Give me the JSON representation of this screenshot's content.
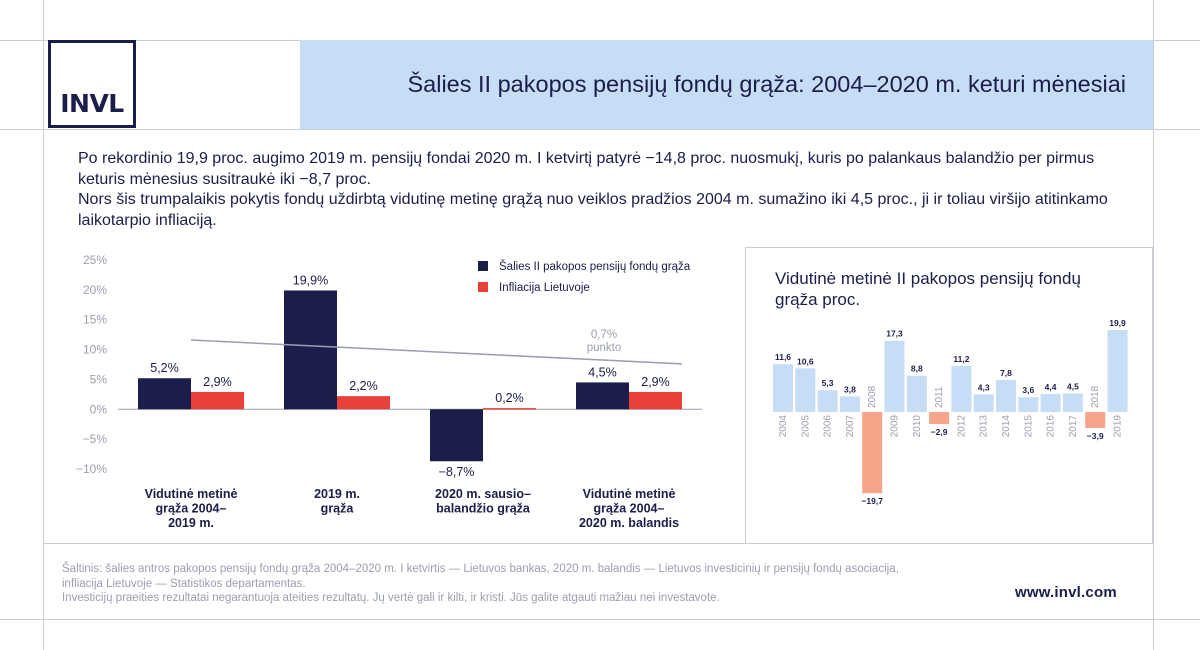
{
  "brand": {
    "logo_text": "INVL"
  },
  "header": {
    "title": "Šalies II pakopos pensijų fondų grąža: 2004–2020 m. keturi mėnesiai"
  },
  "intro": {
    "paragraph1": "Po rekordinio 19,9 proc. augimo 2019 m. pensijų fondai 2020 m. I ketvirtį patyrė −14,8 proc. nuosmukį, kuris po palankaus balandžio per pirmus keturis mėnesius susitraukė iki −8,7 proc.",
    "paragraph2": "Nors šis trumpalaikis pokytis fondų uždirbtą vidutinę metinę grąžą nuo veiklos pradžios 2004 m. sumažino iki 4,5 proc., ji ir toliau viršijo atitinkamo laikotarpio infliaciją."
  },
  "chart_data": [
    {
      "type": "bar",
      "categories": [
        "Vidutinė metinė grąža 2004–2019 m.",
        "2019 m. grąža",
        "2020 m. sausio–balandžio grąža",
        "Vidutinė metinė grąža 2004–2020 m. balandis"
      ],
      "category_lines": [
        [
          "Vidutinė metinė",
          "grąža 2004–",
          "2019 m."
        ],
        [
          "2019 m.",
          "grąža"
        ],
        [
          "2020 m. sausio–",
          "balandžio grąža"
        ],
        [
          "Vidutinė metinė",
          "grąža 2004–",
          "2020 m. balandis"
        ]
      ],
      "series": [
        {
          "name": "Šalies II pakopos pensijų fondų grąža",
          "color": "#1b1d4a",
          "values": [
            5.2,
            19.9,
            -8.7,
            4.5
          ],
          "labels": [
            "5,2%",
            "19,9%",
            "−8,7%",
            "4,5%"
          ]
        },
        {
          "name": "Infliacija Lietuvoje",
          "color": "#e8413a",
          "values": [
            2.9,
            2.2,
            0.2,
            2.9
          ],
          "labels": [
            "2,9%",
            "2,2%",
            "0,2%",
            "2,9%"
          ]
        }
      ],
      "ylim": [
        -10,
        25
      ],
      "yticks": [
        25,
        20,
        15,
        10,
        5,
        0,
        -5,
        -10
      ],
      "ytick_labels": [
        "25%",
        "20%",
        "15%",
        "10%",
        "5%",
        "0%",
        "−5%",
        "−10%"
      ],
      "legend_position": "top-right",
      "annotation": {
        "lines": [
          "0,7%",
          "punkto"
        ],
        "trend_from": 11.6,
        "trend_to": 7.6
      }
    },
    {
      "type": "bar",
      "title": "Vidutinė metinė II pakopos pensijų fondų grąža proc.",
      "categories": [
        "2004",
        "2005",
        "2006",
        "2007",
        "2008",
        "2009",
        "2010",
        "2011",
        "2012",
        "2013",
        "2014",
        "2015",
        "2016",
        "2017",
        "2018",
        "2019"
      ],
      "values": [
        11.6,
        10.6,
        5.3,
        3.8,
        -19.7,
        17.3,
        8.8,
        -2.9,
        11.2,
        4.3,
        7.8,
        3.6,
        4.4,
        4.5,
        -3.9,
        19.9
      ],
      "labels": [
        "11,6",
        "10,6",
        "5,3",
        "3,8",
        "−19,7",
        "17,3",
        "8,8",
        "−2,9",
        "11,2",
        "4,3",
        "7,8",
        "3,6",
        "4,4",
        "4,5",
        "−3,9",
        "19,9"
      ],
      "colors": {
        "positive": "#c7dcf5",
        "negative": "#f6a58a"
      }
    }
  ],
  "footer": {
    "source_line1": "Šaltinis: šalies antros pakopos pensijų fondų grąža 2004–2020 m. I ketvirtis — Lietuvos bankas, 2020 m. balandis — Lietuvos investicinių ir pensijų fondų asociacija,",
    "source_line2": "infliacija Lietuvoje — Statistikos departamentas.",
    "disclaimer": "Investicijų praeities rezultatai negarantuoja ateities rezultatų. Jų vertė gali ir kilti, ir kristi. Jūs galite atgauti mažiau nei investavote.",
    "url": "www.invl.com"
  }
}
